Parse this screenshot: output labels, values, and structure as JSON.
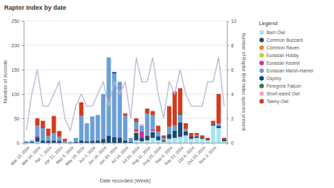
{
  "chart_data": {
    "type": "bar",
    "title": "Raptor Index by date",
    "x_label": "Date recorded (Week)",
    "y_label": "Number of records",
    "y2_label": "Number of Raptor Bird Index species present",
    "legend_title": "Legend",
    "legend": "right",
    "stacked": true,
    "grid": true,
    "categories": [
      "Mar 10, 2024",
      null,
      "Mar 24, 2024",
      null,
      "Apr 7, 2024",
      null,
      "Apr 21, 2024",
      null,
      "May 5, 2024",
      null,
      "May 19, 2024",
      null,
      "Jun 2, 2024",
      null,
      "Jun 16, 2024",
      null,
      "Jun 30, 2024",
      null,
      "Jul 14, 2024",
      null,
      "Jul 28, 2024",
      null,
      "Aug 11, 2024",
      null,
      "Aug 25, 2024",
      null,
      "Sep 8, 2024",
      null,
      "Sep 22, 2024",
      null,
      "Oct 6, 2024",
      null,
      "Oct 20, 2024",
      null,
      "Nov 3, 2024",
      null,
      null
    ],
    "ylim": [
      0,
      250
    ],
    "yticks": [
      0,
      50,
      100,
      150,
      200,
      250
    ],
    "y2lim": [
      0,
      10
    ],
    "y2ticks": [
      0,
      2,
      4,
      6,
      8,
      10
    ],
    "series": [
      {
        "name": "Barn Owl",
        "color": "#a8e4f0",
        "type": "bar",
        "values": [
          0,
          0,
          2,
          0,
          0,
          0,
          0,
          0,
          0,
          0,
          0,
          0,
          0,
          0,
          0,
          0,
          0,
          0,
          0,
          0,
          5,
          3,
          5,
          10,
          5,
          2,
          8,
          10,
          12,
          15,
          8,
          10,
          8,
          5,
          35,
          30,
          3
        ]
      },
      {
        "name": "Common Buzzard",
        "color": "#1d4a73",
        "type": "bar",
        "values": [
          1,
          2,
          8,
          5,
          4,
          5,
          4,
          0,
          0,
          2,
          5,
          3,
          4,
          5,
          8,
          15,
          12,
          10,
          5,
          2,
          15,
          8,
          10,
          12,
          8,
          3,
          10,
          15,
          30,
          8,
          5,
          3,
          2,
          2,
          3,
          5,
          4
        ]
      },
      {
        "name": "Common Raven",
        "color": "#e8862c",
        "type": "bar",
        "values": [
          0,
          0,
          0,
          0,
          0,
          0,
          0,
          0,
          0,
          0,
          0,
          0,
          0,
          0,
          0,
          0,
          0,
          0,
          0,
          0,
          0,
          0,
          0,
          0,
          0,
          0,
          0,
          0,
          0,
          0,
          0,
          0,
          0,
          0,
          0,
          0,
          0
        ]
      },
      {
        "name": "Eurasian Hobby",
        "color": "#b7d43a",
        "type": "bar",
        "values": [
          0,
          0,
          0,
          0,
          0,
          0,
          0,
          0,
          0,
          0,
          0,
          0,
          0,
          0,
          0,
          0,
          0,
          0,
          0,
          0,
          3,
          0,
          0,
          2,
          0,
          0,
          0,
          0,
          0,
          0,
          0,
          0,
          0,
          0,
          0,
          0,
          0
        ]
      },
      {
        "name": "Eurasian Kestrel",
        "color": "#d42aa6",
        "type": "bar",
        "values": [
          0,
          0,
          3,
          0,
          0,
          0,
          0,
          0,
          0,
          0,
          0,
          0,
          0,
          0,
          0,
          0,
          0,
          0,
          0,
          0,
          5,
          12,
          0,
          3,
          0,
          0,
          0,
          0,
          0,
          0,
          0,
          0,
          0,
          0,
          0,
          0,
          0
        ]
      },
      {
        "name": "Eurasian Marsh-Harrier",
        "color": "#6b9fd6",
        "type": "bar",
        "values": [
          2,
          3,
          22,
          25,
          10,
          15,
          8,
          3,
          2,
          8,
          50,
          37,
          50,
          52,
          92,
          160,
          130,
          115,
          50,
          8,
          15,
          12,
          45,
          30,
          10,
          5,
          15,
          10,
          15,
          5,
          0,
          2,
          0,
          0,
          0,
          5,
          0
        ]
      },
      {
        "name": "Osprey",
        "color": "#0b3d91",
        "type": "bar",
        "values": [
          0,
          0,
          0,
          0,
          0,
          0,
          0,
          0,
          0,
          0,
          0,
          0,
          0,
          0,
          0,
          0,
          3,
          0,
          0,
          0,
          2,
          0,
          0,
          0,
          0,
          0,
          0,
          0,
          0,
          0,
          0,
          0,
          0,
          0,
          0,
          0,
          0
        ]
      },
      {
        "name": "Peregrine Falcon",
        "color": "#2f7d3a",
        "type": "bar",
        "values": [
          0,
          0,
          0,
          0,
          0,
          0,
          0,
          0,
          0,
          0,
          0,
          0,
          0,
          0,
          0,
          0,
          0,
          0,
          0,
          0,
          0,
          0,
          0,
          0,
          0,
          0,
          0,
          0,
          3,
          0,
          0,
          0,
          0,
          0,
          0,
          0,
          0
        ]
      },
      {
        "name": "Short-eared Owl",
        "color": "#f2a7c9",
        "type": "bar",
        "values": [
          0,
          0,
          0,
          0,
          0,
          0,
          0,
          0,
          0,
          0,
          0,
          0,
          0,
          0,
          0,
          0,
          0,
          0,
          0,
          0,
          0,
          3,
          0,
          0,
          0,
          0,
          0,
          0,
          0,
          0,
          0,
          0,
          0,
          0,
          0,
          0,
          0
        ]
      },
      {
        "name": "Tawny Owl",
        "color": "#d23b1f",
        "type": "bar",
        "values": [
          0,
          0,
          15,
          15,
          15,
          35,
          12,
          5,
          0,
          0,
          28,
          0,
          0,
          0,
          0,
          0,
          0,
          0,
          5,
          0,
          5,
          0,
          10,
          8,
          12,
          5,
          42,
          70,
          52,
          12,
          7,
          5,
          5,
          3,
          7,
          60,
          3
        ]
      },
      {
        "color": "#bcbcd8",
        "type": "line",
        "axis": "y2",
        "values": [
          1,
          4,
          6,
          3,
          3,
          4,
          5,
          2,
          1,
          3,
          4,
          3,
          3,
          4,
          5,
          3,
          5,
          4,
          5,
          2,
          7,
          5,
          5,
          7,
          4,
          2,
          5,
          4,
          6,
          4,
          3,
          3,
          3,
          5,
          5,
          7,
          3
        ]
      }
    ]
  }
}
